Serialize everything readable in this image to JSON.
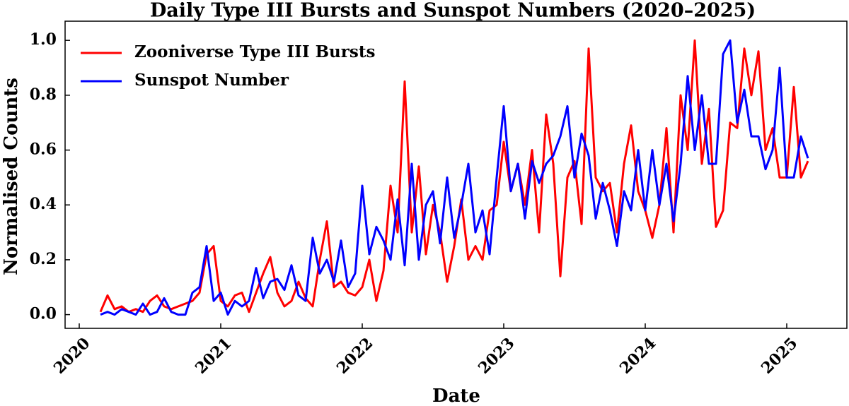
{
  "chart_data": {
    "type": "line",
    "title": "Daily Type III Bursts and Sunspot Numbers (2020–2025)",
    "x_label": "Date",
    "y_label": "Normalised Counts",
    "x": [
      2020.15,
      2020.2,
      2020.25,
      2020.3,
      2020.35,
      2020.4,
      2020.45,
      2020.5,
      2020.55,
      2020.6,
      2020.65,
      2020.7,
      2020.75,
      2020.8,
      2020.85,
      2020.9,
      2020.95,
      2021.0,
      2021.05,
      2021.1,
      2021.15,
      2021.2,
      2021.25,
      2021.3,
      2021.35,
      2021.4,
      2021.45,
      2021.5,
      2021.55,
      2021.6,
      2021.65,
      2021.7,
      2021.75,
      2021.8,
      2021.85,
      2021.9,
      2021.95,
      2022.0,
      2022.05,
      2022.1,
      2022.15,
      2022.2,
      2022.25,
      2022.3,
      2022.35,
      2022.4,
      2022.45,
      2022.5,
      2022.55,
      2022.6,
      2022.65,
      2022.7,
      2022.75,
      2022.8,
      2022.85,
      2022.9,
      2022.95,
      2023.0,
      2023.05,
      2023.1,
      2023.15,
      2023.2,
      2023.25,
      2023.3,
      2023.35,
      2023.4,
      2023.45,
      2023.5,
      2023.55,
      2023.6,
      2023.65,
      2023.7,
      2023.75,
      2023.8,
      2023.85,
      2023.9,
      2023.95,
      2024.0,
      2024.05,
      2024.1,
      2024.15,
      2024.2,
      2024.25,
      2024.3,
      2024.35,
      2024.4,
      2024.45,
      2024.5,
      2024.55,
      2024.6,
      2024.65,
      2024.7,
      2024.75,
      2024.8,
      2024.85,
      2024.9,
      2024.95,
      2025.0,
      2025.05,
      2025.1,
      2025.15
    ],
    "series": [
      {
        "name": "Zooniverse Type III Bursts",
        "color": "#ff0000",
        "values": [
          0.01,
          0.07,
          0.02,
          0.03,
          0.01,
          0.02,
          0.01,
          0.05,
          0.07,
          0.03,
          0.02,
          0.03,
          0.04,
          0.05,
          0.08,
          0.22,
          0.25,
          0.05,
          0.03,
          0.07,
          0.08,
          0.01,
          0.08,
          0.15,
          0.21,
          0.08,
          0.03,
          0.05,
          0.12,
          0.06,
          0.03,
          0.2,
          0.34,
          0.1,
          0.12,
          0.08,
          0.07,
          0.1,
          0.2,
          0.05,
          0.16,
          0.47,
          0.3,
          0.85,
          0.3,
          0.54,
          0.22,
          0.4,
          0.3,
          0.12,
          0.25,
          0.42,
          0.2,
          0.25,
          0.2,
          0.38,
          0.4,
          0.63,
          0.45,
          0.55,
          0.4,
          0.6,
          0.3,
          0.73,
          0.55,
          0.14,
          0.5,
          0.56,
          0.33,
          0.97,
          0.5,
          0.45,
          0.48,
          0.3,
          0.55,
          0.69,
          0.45,
          0.38,
          0.28,
          0.4,
          0.68,
          0.3,
          0.8,
          0.6,
          1.0,
          0.55,
          0.75,
          0.32,
          0.38,
          0.7,
          0.68,
          0.97,
          0.8,
          0.96,
          0.6,
          0.68,
          0.5,
          0.5,
          0.83,
          0.5,
          0.56
        ]
      },
      {
        "name": "Sunspot Number",
        "color": "#0000ff",
        "values": [
          0.0,
          0.01,
          0.0,
          0.02,
          0.01,
          0.0,
          0.04,
          0.0,
          0.01,
          0.06,
          0.01,
          0.0,
          0.0,
          0.08,
          0.1,
          0.25,
          0.05,
          0.08,
          0.0,
          0.05,
          0.03,
          0.05,
          0.17,
          0.06,
          0.12,
          0.13,
          0.09,
          0.18,
          0.07,
          0.05,
          0.28,
          0.15,
          0.2,
          0.12,
          0.27,
          0.1,
          0.15,
          0.47,
          0.22,
          0.32,
          0.27,
          0.2,
          0.42,
          0.18,
          0.55,
          0.2,
          0.4,
          0.45,
          0.26,
          0.5,
          0.28,
          0.4,
          0.55,
          0.3,
          0.38,
          0.22,
          0.5,
          0.76,
          0.45,
          0.55,
          0.35,
          0.56,
          0.48,
          0.55,
          0.58,
          0.65,
          0.76,
          0.5,
          0.66,
          0.58,
          0.35,
          0.48,
          0.38,
          0.25,
          0.45,
          0.38,
          0.6,
          0.38,
          0.6,
          0.4,
          0.55,
          0.34,
          0.55,
          0.87,
          0.6,
          0.8,
          0.55,
          0.55,
          0.95,
          1.0,
          0.7,
          0.82,
          0.65,
          0.65,
          0.53,
          0.6,
          0.9,
          0.5,
          0.5,
          0.65,
          0.57
        ]
      }
    ],
    "xlim": [
      2019.9,
      2025.425
    ],
    "xticks": [
      2020,
      2021,
      2022,
      2023,
      2024,
      2025
    ],
    "ylim": [
      -0.05,
      1.07
    ],
    "yticks": [
      {
        "value": 0,
        "label": "0.0"
      },
      {
        "value": 0.2,
        "label": "0.2"
      },
      {
        "value": 0.4,
        "label": "0.4"
      },
      {
        "value": 0.6,
        "label": "0.6"
      },
      {
        "value": 0.8,
        "label": "0.8"
      },
      {
        "value": 1.0,
        "label": "1.0"
      }
    ],
    "legend": "upper left",
    "grid": false
  }
}
